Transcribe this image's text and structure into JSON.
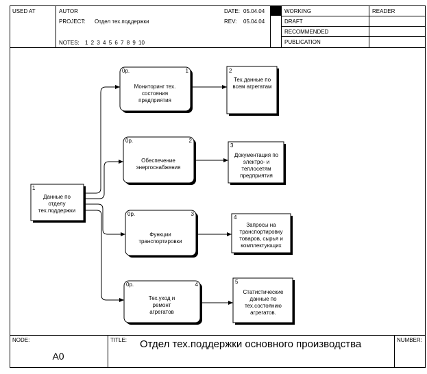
{
  "header": {
    "used_at": "USED AT",
    "author_label": "AUTOR",
    "project_label": "PROJECT:",
    "project_value": "Отдел тех.поддержки",
    "date_label": "DATE:",
    "date_value": "05.04.04",
    "rev_label": "REV:",
    "rev_value": "05.04.04",
    "notes_label": "NOTES:",
    "notes_values": "1 2 3 4 5 6 7 8 9 10",
    "status": [
      "WORKING",
      "DRAFT",
      "RECOMMENDED",
      "PUBLICATION"
    ],
    "reader_label": "READER"
  },
  "diagram": {
    "source": {
      "num": "1",
      "lines": [
        "Данные по",
        "отделу",
        "тех.поддержки"
      ]
    },
    "activities": [
      {
        "lines": [
          "Мониторинг тех.",
          "состояния",
          "предприятия"
        ],
        "cost": "0р.",
        "num": "1"
      },
      {
        "lines": [
          "Обеспечение",
          "энергоснабжения"
        ],
        "cost": "0р.",
        "num": "2"
      },
      {
        "lines": [
          "Функции",
          "транспортировки"
        ],
        "cost": "0р.",
        "num": "3"
      },
      {
        "lines": [
          "Тех.уход и",
          "ремонт",
          "агрегатов"
        ],
        "cost": "0р.",
        "num": "4"
      }
    ],
    "outputs": [
      {
        "num": "2",
        "lines": [
          "Тех.данные по",
          "всем агрегатам"
        ]
      },
      {
        "num": "3",
        "lines": [
          "Документация по",
          "электро- и",
          "теплосетям",
          "предприятия"
        ]
      },
      {
        "num": "4",
        "lines": [
          "Запросы на",
          "транспортировку",
          "товаров, сырья и",
          "комплектующих"
        ]
      },
      {
        "num": "5",
        "lines": [
          "Статистические",
          "данные по",
          "тех.состоянию",
          "агрегатов."
        ]
      }
    ]
  },
  "footer": {
    "node_label": "NODE:",
    "node_value": "A0",
    "title_label": "TITLE:",
    "title_value": "Отдел тех.поддержки основного производства",
    "number_label": "NUMBER:"
  }
}
